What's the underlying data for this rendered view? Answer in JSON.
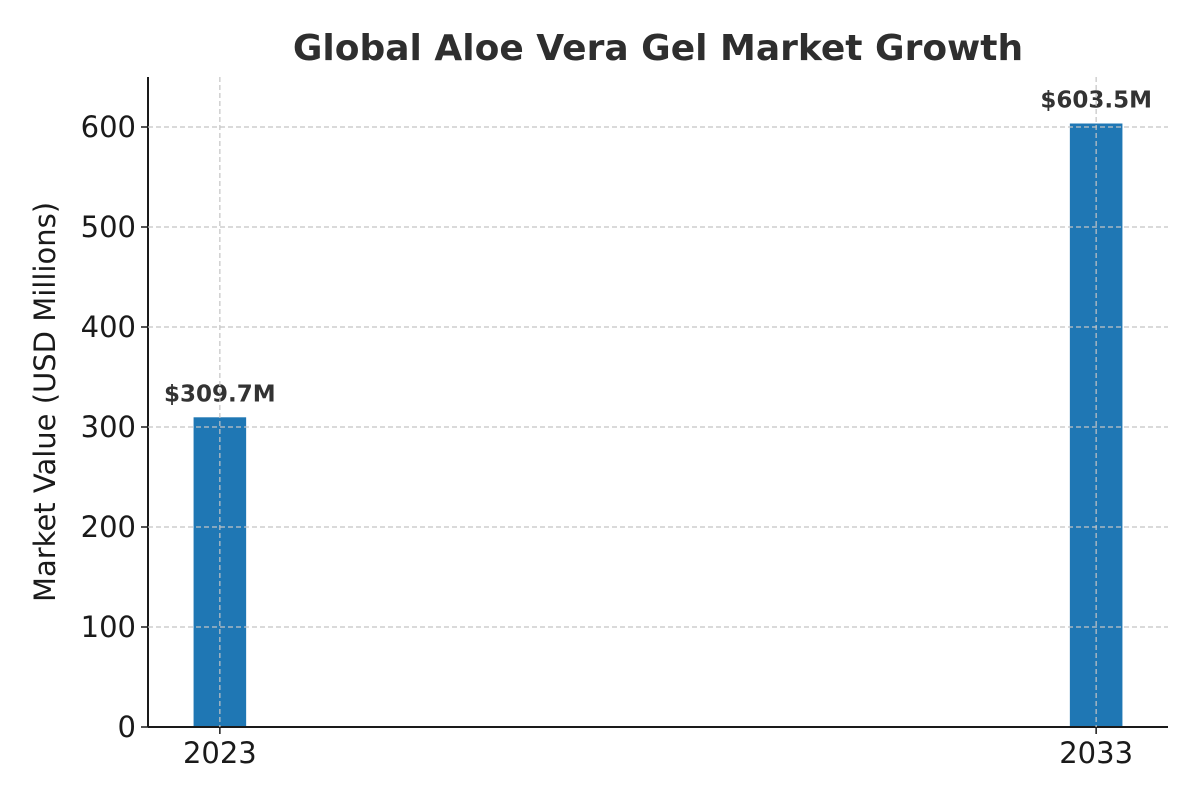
{
  "chart_data": {
    "type": "bar",
    "title": "Global Aloe Vera Gel Market Growth",
    "xlabel": "",
    "ylabel": "Market Value (USD Millions)",
    "categories": [
      "2023",
      "2033"
    ],
    "x": [
      2023,
      2033
    ],
    "values": [
      309.7,
      603.5
    ],
    "data_labels": [
      "$309.7M",
      "$603.5M"
    ],
    "ylim": [
      0,
      650
    ],
    "xlim": [
      2022.18,
      2033.82
    ],
    "yticks": [
      0,
      100,
      200,
      300,
      400,
      500,
      600
    ],
    "ytick_labels": [
      "0",
      "100",
      "200",
      "300",
      "400",
      "500",
      "600"
    ],
    "xticks": [
      2023,
      2033
    ],
    "xtick_labels": [
      "2023",
      "2033"
    ],
    "bar_width_years": 0.6,
    "grid": true,
    "legend": "none",
    "bar_color": "#1f77b4"
  }
}
